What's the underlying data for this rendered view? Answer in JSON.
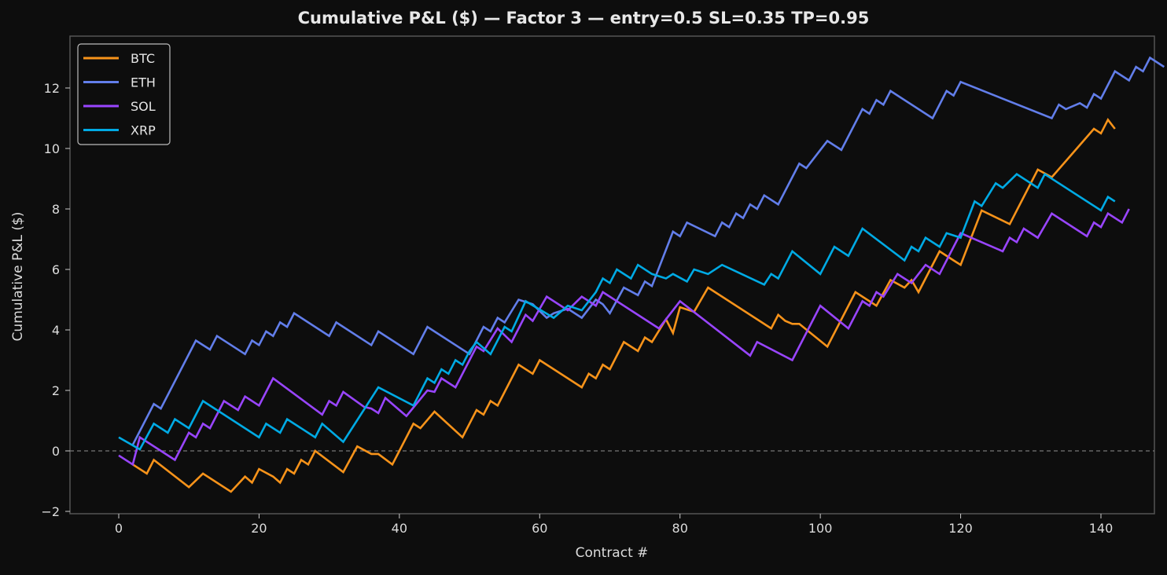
{
  "chart_data": {
    "type": "line",
    "title": "Cumulative P&L ($)  —  Factor 3  —  entry=0.5  SL=0.35  TP=0.95",
    "xlabel": "Contract #",
    "ylabel": "Cumulative P&L ($)",
    "xlim": [
      -7,
      149
    ],
    "ylim": [
      -2.1,
      13.7
    ],
    "xticks": [
      0,
      20,
      40,
      60,
      80,
      100,
      120,
      140
    ],
    "yticks": [
      -2,
      0,
      2,
      4,
      6,
      8,
      10,
      12
    ],
    "grid": false,
    "zero_line": {
      "y": 0,
      "style": "dashed",
      "color": "#777777"
    },
    "legend_position": "upper left",
    "series": [
      {
        "name": "BTC",
        "color": "#f7931a",
        "points": [
          [
            2,
            -0.45
          ],
          [
            4,
            -0.75
          ],
          [
            5,
            -0.3
          ],
          [
            10,
            -1.2
          ],
          [
            12,
            -0.75
          ],
          [
            16,
            -1.35
          ],
          [
            18,
            -0.85
          ],
          [
            19,
            -1.05
          ],
          [
            20,
            -0.6
          ],
          [
            22,
            -0.85
          ],
          [
            23,
            -1.05
          ],
          [
            24,
            -0.6
          ],
          [
            25,
            -0.75
          ],
          [
            26,
            -0.3
          ],
          [
            27,
            -0.45
          ],
          [
            28,
            0.0
          ],
          [
            32,
            -0.7
          ],
          [
            34,
            0.15
          ],
          [
            36,
            -0.1
          ],
          [
            37,
            -0.1
          ],
          [
            39,
            -0.45
          ],
          [
            42,
            0.9
          ],
          [
            43,
            0.75
          ],
          [
            45,
            1.3
          ],
          [
            49,
            0.45
          ],
          [
            51,
            1.35
          ],
          [
            52,
            1.2
          ],
          [
            53,
            1.65
          ],
          [
            54,
            1.5
          ],
          [
            57,
            2.85
          ],
          [
            59,
            2.55
          ],
          [
            60,
            3.0
          ],
          [
            66,
            2.1
          ],
          [
            67,
            2.55
          ],
          [
            68,
            2.4
          ],
          [
            69,
            2.85
          ],
          [
            70,
            2.7
          ],
          [
            72,
            3.6
          ],
          [
            74,
            3.3
          ],
          [
            75,
            3.75
          ],
          [
            76,
            3.6
          ],
          [
            78,
            4.35
          ],
          [
            79,
            3.9
          ],
          [
            80,
            4.75
          ],
          [
            82,
            4.6
          ],
          [
            84,
            5.4
          ],
          [
            93,
            4.05
          ],
          [
            94,
            4.5
          ],
          [
            95,
            4.3
          ],
          [
            96,
            4.2
          ],
          [
            97,
            4.2
          ],
          [
            101,
            3.45
          ],
          [
            105,
            5.25
          ],
          [
            107,
            4.95
          ],
          [
            108,
            4.8
          ],
          [
            110,
            5.65
          ],
          [
            112,
            5.4
          ],
          [
            113,
            5.65
          ],
          [
            114,
            5.25
          ],
          [
            117,
            6.6
          ],
          [
            119,
            6.3
          ],
          [
            120,
            6.15
          ],
          [
            123,
            7.95
          ],
          [
            127,
            7.5
          ],
          [
            131,
            9.3
          ],
          [
            133,
            9.05
          ],
          [
            139,
            10.65
          ],
          [
            140,
            10.5
          ],
          [
            141,
            10.95
          ],
          [
            142,
            10.65
          ]
        ]
      },
      {
        "name": "ETH",
        "color": "#627eea",
        "points": [
          [
            2,
            0.2
          ],
          [
            5,
            1.55
          ],
          [
            6,
            1.4
          ],
          [
            11,
            3.65
          ],
          [
            13,
            3.35
          ],
          [
            14,
            3.8
          ],
          [
            18,
            3.2
          ],
          [
            19,
            3.65
          ],
          [
            20,
            3.5
          ],
          [
            21,
            3.95
          ],
          [
            22,
            3.8
          ],
          [
            23,
            4.25
          ],
          [
            24,
            4.1
          ],
          [
            25,
            4.55
          ],
          [
            30,
            3.8
          ],
          [
            31,
            4.25
          ],
          [
            36,
            3.5
          ],
          [
            37,
            3.95
          ],
          [
            42,
            3.2
          ],
          [
            44,
            4.1
          ],
          [
            50,
            3.2
          ],
          [
            52,
            4.1
          ],
          [
            53,
            3.95
          ],
          [
            54,
            4.4
          ],
          [
            55,
            4.25
          ],
          [
            57,
            5.0
          ],
          [
            59,
            4.85
          ],
          [
            61,
            4.4
          ],
          [
            62,
            4.55
          ],
          [
            64,
            4.7
          ],
          [
            66,
            4.4
          ],
          [
            68,
            5.0
          ],
          [
            69,
            4.85
          ],
          [
            70,
            4.55
          ],
          [
            72,
            5.4
          ],
          [
            74,
            5.15
          ],
          [
            75,
            5.6
          ],
          [
            76,
            5.45
          ],
          [
            79,
            7.25
          ],
          [
            80,
            7.1
          ],
          [
            81,
            7.55
          ],
          [
            85,
            7.1
          ],
          [
            86,
            7.55
          ],
          [
            87,
            7.4
          ],
          [
            88,
            7.85
          ],
          [
            89,
            7.7
          ],
          [
            90,
            8.15
          ],
          [
            91,
            8.0
          ],
          [
            92,
            8.45
          ],
          [
            94,
            8.15
          ],
          [
            97,
            9.5
          ],
          [
            98,
            9.35
          ],
          [
            101,
            10.25
          ],
          [
            103,
            9.95
          ],
          [
            106,
            11.3
          ],
          [
            107,
            11.15
          ],
          [
            108,
            11.6
          ],
          [
            109,
            11.45
          ],
          [
            110,
            11.9
          ],
          [
            116,
            11.0
          ],
          [
            118,
            11.9
          ],
          [
            119,
            11.75
          ],
          [
            120,
            12.2
          ],
          [
            133,
            11.0
          ],
          [
            134,
            11.45
          ],
          [
            135,
            11.3
          ],
          [
            137,
            11.5
          ],
          [
            138,
            11.35
          ],
          [
            139,
            11.8
          ],
          [
            140,
            11.65
          ],
          [
            142,
            12.55
          ],
          [
            144,
            12.25
          ],
          [
            145,
            12.7
          ],
          [
            146,
            12.55
          ],
          [
            147,
            13.0
          ],
          [
            149,
            12.7
          ]
        ]
      },
      {
        "name": "SOL",
        "color": "#9945ff",
        "points": [
          [
            0,
            -0.15
          ],
          [
            2,
            -0.45
          ],
          [
            3,
            0.45
          ],
          [
            8,
            -0.3
          ],
          [
            10,
            0.6
          ],
          [
            11,
            0.45
          ],
          [
            12,
            0.9
          ],
          [
            13,
            0.75
          ],
          [
            15,
            1.65
          ],
          [
            17,
            1.35
          ],
          [
            18,
            1.8
          ],
          [
            20,
            1.5
          ],
          [
            22,
            2.4
          ],
          [
            29,
            1.2
          ],
          [
            30,
            1.65
          ],
          [
            31,
            1.5
          ],
          [
            32,
            1.95
          ],
          [
            35,
            1.45
          ],
          [
            36,
            1.4
          ],
          [
            37,
            1.25
          ],
          [
            38,
            1.75
          ],
          [
            41,
            1.15
          ],
          [
            44,
            2.0
          ],
          [
            45,
            1.95
          ],
          [
            46,
            2.4
          ],
          [
            48,
            2.1
          ],
          [
            51,
            3.45
          ],
          [
            52,
            3.3
          ],
          [
            54,
            4.05
          ],
          [
            56,
            3.6
          ],
          [
            57,
            4.05
          ],
          [
            58,
            4.5
          ],
          [
            59,
            4.3
          ],
          [
            61,
            5.1
          ],
          [
            64,
            4.65
          ],
          [
            66,
            5.1
          ],
          [
            68,
            4.8
          ],
          [
            69,
            5.25
          ],
          [
            77,
            4.05
          ],
          [
            80,
            4.95
          ],
          [
            90,
            3.15
          ],
          [
            91,
            3.6
          ],
          [
            96,
            3.0
          ],
          [
            100,
            4.8
          ],
          [
            104,
            4.05
          ],
          [
            106,
            4.95
          ],
          [
            107,
            4.8
          ],
          [
            108,
            5.25
          ],
          [
            109,
            5.1
          ],
          [
            111,
            5.85
          ],
          [
            113,
            5.55
          ],
          [
            115,
            6.15
          ],
          [
            117,
            5.85
          ],
          [
            120,
            7.2
          ],
          [
            126,
            6.6
          ],
          [
            127,
            7.05
          ],
          [
            128,
            6.9
          ],
          [
            129,
            7.35
          ],
          [
            131,
            7.05
          ],
          [
            133,
            7.85
          ],
          [
            138,
            7.1
          ],
          [
            139,
            7.55
          ],
          [
            140,
            7.4
          ],
          [
            141,
            7.85
          ],
          [
            143,
            7.55
          ],
          [
            144,
            8.0
          ]
        ]
      },
      {
        "name": "XRP",
        "color": "#00aae4",
        "points": [
          [
            0,
            0.45
          ],
          [
            3,
            0.05
          ],
          [
            5,
            0.9
          ],
          [
            7,
            0.6
          ],
          [
            8,
            1.05
          ],
          [
            10,
            0.75
          ],
          [
            12,
            1.65
          ],
          [
            20,
            0.45
          ],
          [
            21,
            0.9
          ],
          [
            23,
            0.6
          ],
          [
            24,
            1.05
          ],
          [
            28,
            0.45
          ],
          [
            29,
            0.9
          ],
          [
            32,
            0.3
          ],
          [
            37,
            2.1
          ],
          [
            42,
            1.5
          ],
          [
            44,
            2.4
          ],
          [
            45,
            2.25
          ],
          [
            46,
            2.7
          ],
          [
            47,
            2.55
          ],
          [
            48,
            3.0
          ],
          [
            49,
            2.85
          ],
          [
            50,
            3.3
          ],
          [
            51,
            3.6
          ],
          [
            53,
            3.2
          ],
          [
            55,
            4.1
          ],
          [
            56,
            3.95
          ],
          [
            58,
            4.95
          ],
          [
            62,
            4.4
          ],
          [
            64,
            4.8
          ],
          [
            66,
            4.65
          ],
          [
            68,
            5.25
          ],
          [
            69,
            5.7
          ],
          [
            70,
            5.55
          ],
          [
            71,
            6.0
          ],
          [
            73,
            5.7
          ],
          [
            74,
            6.15
          ],
          [
            76,
            5.85
          ],
          [
            78,
            5.7
          ],
          [
            79,
            5.85
          ],
          [
            81,
            5.6
          ],
          [
            82,
            6.0
          ],
          [
            84,
            5.85
          ],
          [
            86,
            6.15
          ],
          [
            92,
            5.5
          ],
          [
            93,
            5.85
          ],
          [
            94,
            5.7
          ],
          [
            96,
            6.6
          ],
          [
            100,
            5.85
          ],
          [
            102,
            6.75
          ],
          [
            104,
            6.45
          ],
          [
            106,
            7.35
          ],
          [
            112,
            6.3
          ],
          [
            113,
            6.75
          ],
          [
            114,
            6.6
          ],
          [
            115,
            7.05
          ],
          [
            117,
            6.75
          ],
          [
            118,
            7.2
          ],
          [
            120,
            7.05
          ],
          [
            122,
            8.25
          ],
          [
            123,
            8.1
          ],
          [
            125,
            8.85
          ],
          [
            126,
            8.7
          ],
          [
            128,
            9.15
          ],
          [
            131,
            8.7
          ],
          [
            132,
            9.15
          ],
          [
            140,
            7.95
          ],
          [
            141,
            8.4
          ],
          [
            142,
            8.25
          ]
        ]
      }
    ]
  },
  "legend": {
    "items": [
      {
        "label": "BTC",
        "color": "#f7931a"
      },
      {
        "label": "ETH",
        "color": "#627eea"
      },
      {
        "label": "SOL",
        "color": "#9945ff"
      },
      {
        "label": "XRP",
        "color": "#00aae4"
      }
    ]
  },
  "colors": {
    "background": "#0d0d0d",
    "axes": "#555555",
    "text": "#dcdcdc"
  }
}
